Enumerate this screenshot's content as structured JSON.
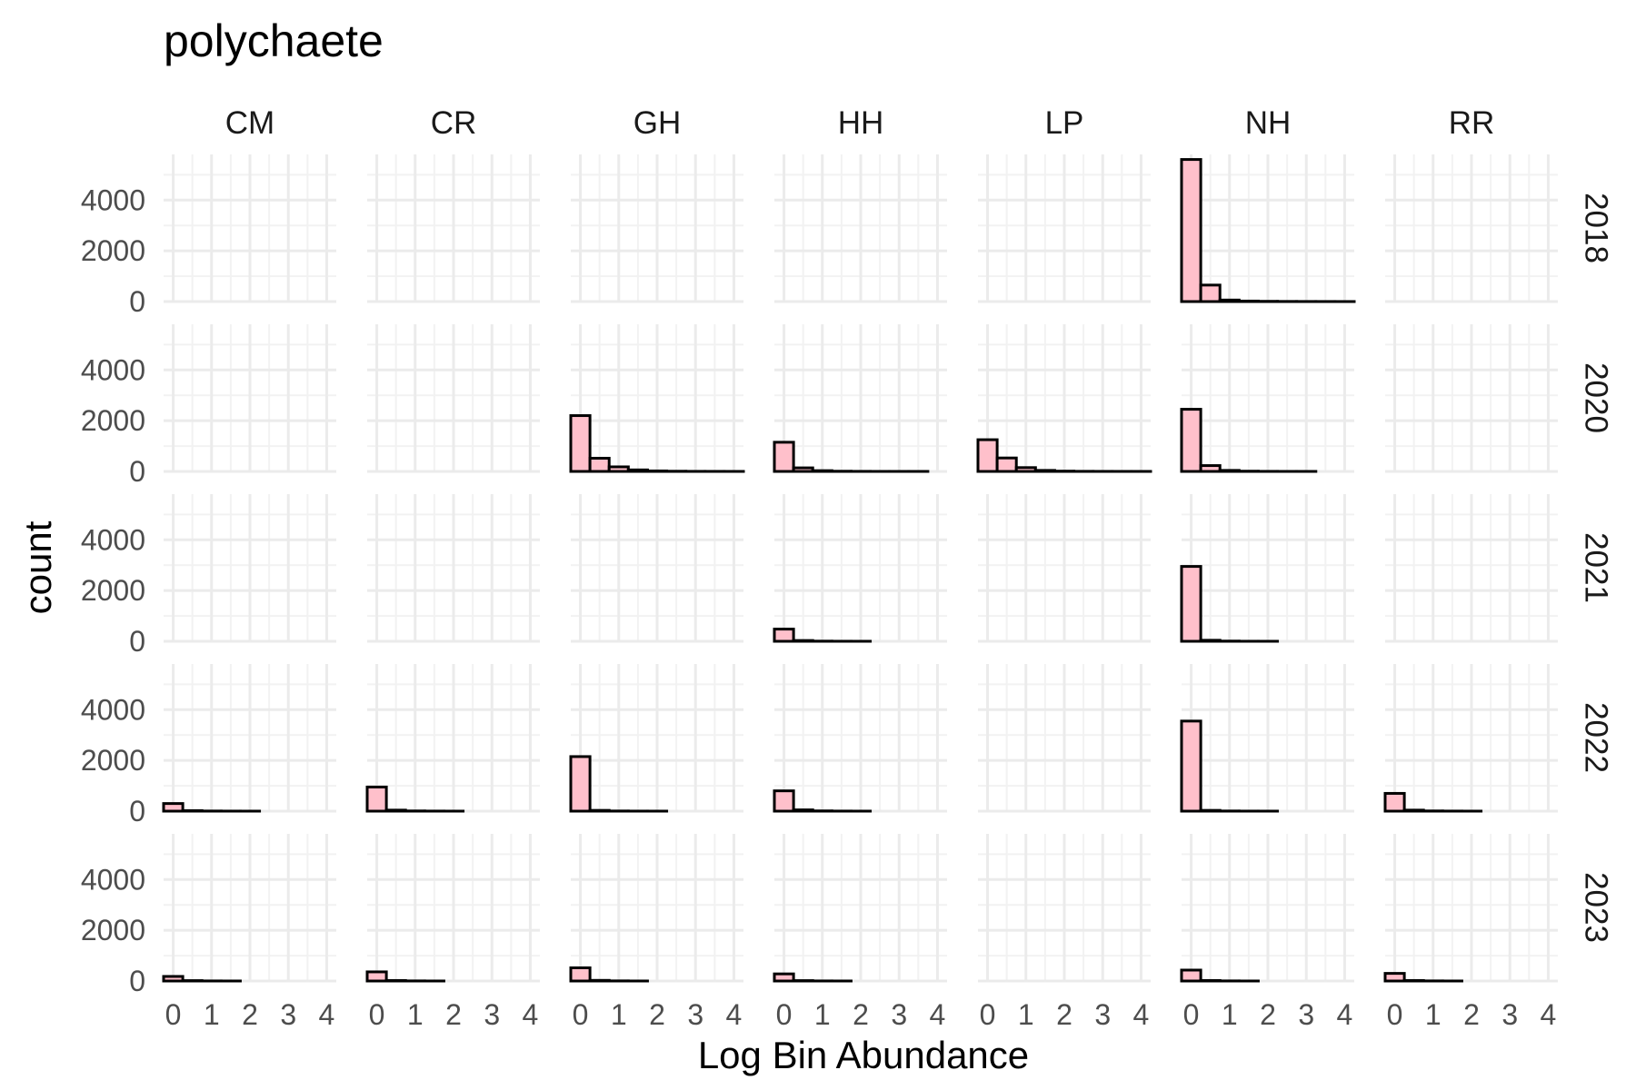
{
  "chart_data": {
    "type": "bar",
    "subtype": "faceted-histogram",
    "title": "polychaete",
    "xlabel": "Log Bin Abundance",
    "ylabel": "count",
    "facet_cols": [
      "CM",
      "CR",
      "GH",
      "HH",
      "LP",
      "NH",
      "RR"
    ],
    "facet_rows": [
      "2018",
      "2020",
      "2021",
      "2022",
      "2023"
    ],
    "xlim": [
      -0.25,
      4.25
    ],
    "ylim": [
      0,
      5800
    ],
    "x_ticks": [
      0,
      1,
      2,
      3,
      4
    ],
    "y_ticks": [
      0,
      2000,
      4000
    ],
    "bin_width": 0.5,
    "bin_starts": [
      -0.25,
      0.25,
      0.75,
      1.25,
      1.75,
      2.25,
      2.75,
      3.25,
      3.75
    ],
    "grid": true,
    "fill_color": "#ffc0cb",
    "stroke_color": "#000000",
    "panels": [
      {
        "row": "2018",
        "col": "NH",
        "values": [
          5600,
          650,
          60,
          20,
          10,
          5,
          3,
          2,
          1
        ]
      },
      {
        "row": "2020",
        "col": "GH",
        "values": [
          2200,
          520,
          180,
          60,
          20,
          8,
          3,
          2,
          1
        ]
      },
      {
        "row": "2020",
        "col": "HH",
        "values": [
          1150,
          140,
          30,
          8,
          3,
          1,
          1,
          1,
          0
        ]
      },
      {
        "row": "2020",
        "col": "LP",
        "values": [
          1250,
          530,
          150,
          40,
          12,
          4,
          2,
          1,
          1
        ]
      },
      {
        "row": "2020",
        "col": "NH",
        "values": [
          2450,
          230,
          40,
          10,
          3,
          1,
          1,
          0,
          0
        ]
      },
      {
        "row": "2021",
        "col": "HH",
        "values": [
          480,
          30,
          6,
          2,
          1,
          0,
          0,
          0,
          0
        ]
      },
      {
        "row": "2021",
        "col": "NH",
        "values": [
          2950,
          40,
          8,
          2,
          1,
          0,
          0,
          0,
          0
        ]
      },
      {
        "row": "2022",
        "col": "CM",
        "values": [
          300,
          20,
          5,
          2,
          1,
          0,
          0,
          0,
          0
        ]
      },
      {
        "row": "2022",
        "col": "CR",
        "values": [
          950,
          40,
          8,
          3,
          1,
          0,
          0,
          0,
          0
        ]
      },
      {
        "row": "2022",
        "col": "GH",
        "values": [
          2150,
          30,
          6,
          2,
          1,
          0,
          0,
          0,
          0
        ]
      },
      {
        "row": "2022",
        "col": "HH",
        "values": [
          800,
          50,
          10,
          3,
          1,
          0,
          0,
          0,
          0
        ]
      },
      {
        "row": "2022",
        "col": "NH",
        "values": [
          3550,
          30,
          6,
          2,
          1,
          0,
          0,
          0,
          0
        ]
      },
      {
        "row": "2022",
        "col": "RR",
        "values": [
          700,
          40,
          8,
          3,
          1,
          0,
          0,
          0,
          0
        ]
      },
      {
        "row": "2023",
        "col": "CM",
        "values": [
          180,
          15,
          3,
          1,
          0,
          0,
          0,
          0,
          0
        ]
      },
      {
        "row": "2023",
        "col": "CR",
        "values": [
          360,
          20,
          4,
          1,
          0,
          0,
          0,
          0,
          0
        ]
      },
      {
        "row": "2023",
        "col": "GH",
        "values": [
          520,
          25,
          5,
          1,
          0,
          0,
          0,
          0,
          0
        ]
      },
      {
        "row": "2023",
        "col": "HH",
        "values": [
          280,
          15,
          3,
          1,
          0,
          0,
          0,
          0,
          0
        ]
      },
      {
        "row": "2023",
        "col": "NH",
        "values": [
          430,
          20,
          4,
          1,
          0,
          0,
          0,
          0,
          0
        ]
      },
      {
        "row": "2023",
        "col": "RR",
        "values": [
          300,
          20,
          4,
          1,
          0,
          0,
          0,
          0,
          0
        ]
      }
    ]
  }
}
